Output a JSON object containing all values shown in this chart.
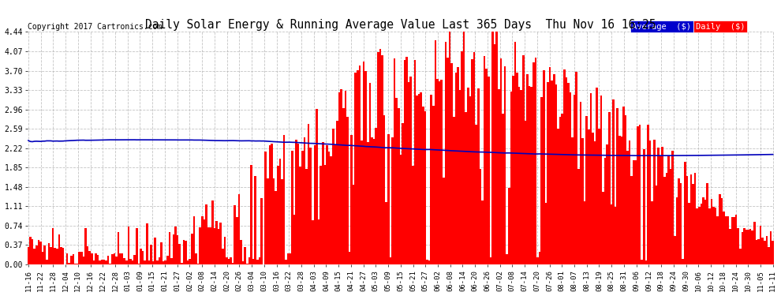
{
  "title": "Daily Solar Energy & Running Average Value Last 365 Days  Thu Nov 16 16:25",
  "copyright": "Copyright 2017 Cartronics.com",
  "bar_color": "#ff0000",
  "avg_line_color": "#0000bb",
  "background_color": "#ffffff",
  "grid_color": "#aaaaaa",
  "ylim": [
    0.0,
    4.44
  ],
  "yticks": [
    0.0,
    0.37,
    0.74,
    1.11,
    1.48,
    1.85,
    2.22,
    2.59,
    2.96,
    3.33,
    3.7,
    4.07,
    4.44
  ],
  "legend_avg_label": "Average  ($)",
  "legend_daily_label": "Daily  ($)",
  "legend_avg_bg": "#0000cc",
  "legend_daily_bg": "#ff0000",
  "n_days": 365,
  "xtick_labels": [
    "11-16",
    "11-22",
    "11-28",
    "12-04",
    "12-10",
    "12-16",
    "12-22",
    "12-28",
    "01-03",
    "01-09",
    "01-15",
    "01-21",
    "01-27",
    "02-02",
    "02-08",
    "02-14",
    "02-20",
    "02-26",
    "03-04",
    "03-10",
    "03-16",
    "03-22",
    "03-28",
    "04-03",
    "04-09",
    "04-15",
    "04-21",
    "04-27",
    "05-03",
    "05-09",
    "05-15",
    "05-21",
    "05-27",
    "06-02",
    "06-08",
    "06-14",
    "06-20",
    "06-26",
    "07-02",
    "07-08",
    "07-14",
    "07-20",
    "07-26",
    "08-01",
    "08-07",
    "08-13",
    "08-19",
    "08-25",
    "08-31",
    "09-06",
    "09-12",
    "09-18",
    "09-24",
    "09-30",
    "10-06",
    "10-12",
    "10-18",
    "10-24",
    "10-30",
    "11-05",
    "11-11"
  ]
}
